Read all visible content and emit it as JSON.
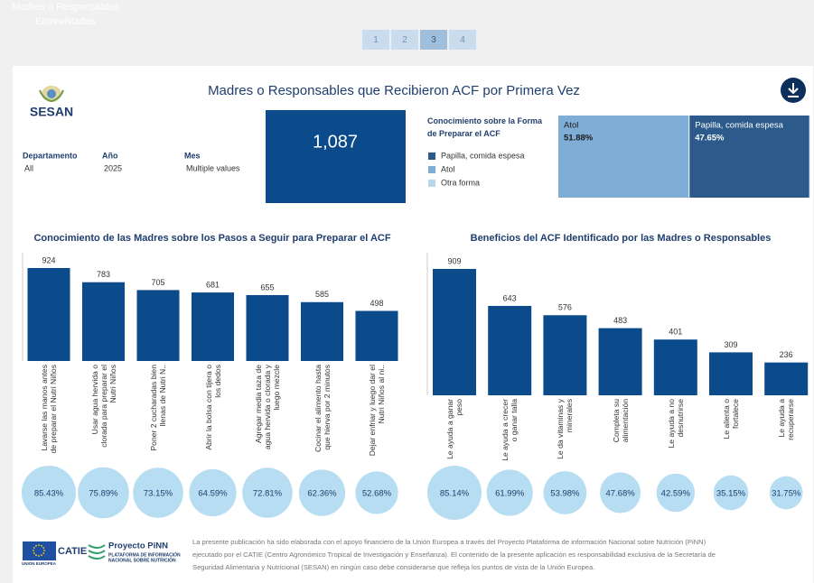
{
  "pages": [
    "1",
    "2",
    "3",
    "4"
  ],
  "current_page": "3",
  "title": "Madres o Responsables que Recibieron ACF por Primera Vez",
  "logo": "SESAN",
  "filters": [
    {
      "label": "Departamento",
      "value": "All"
    },
    {
      "label": "Año",
      "value": "2025"
    },
    {
      "label": "Mes",
      "value": "Multiple values"
    }
  ],
  "kpi": {
    "value": "1,087",
    "label": "Madres o Responsables Entrevistadas"
  },
  "chart_data": [
    {
      "type": "treemap",
      "title": "Conocimiento sobre la Forma de Preparar el ACF",
      "series": [
        {
          "name": "Papilla, comida espesa",
          "color": "#2c5a8a",
          "value": 47.65,
          "value_label": "47.65%"
        },
        {
          "name": "Atol",
          "color": "#7fadd6",
          "value": 51.88,
          "value_label": "51.88%"
        },
        {
          "name": "Otra forma",
          "color": "#b5d6ec",
          "value": 0.47
        }
      ]
    },
    {
      "type": "bar",
      "title": "Conocimiento de las Madres sobre los Pasos a Seguir para Preparar el ACF",
      "categories": [
        "Lavarse las manos antes de preparar el Nutri Niños",
        "Usar agua hervida o clorada para preparar el Nutri Niños",
        "Poner 2 cucharadas bien llenas de Nutri N..",
        "Abrir la bolsa con tijera o los dedos",
        "Agregar media taza de agua hervida o clorada y luego mezcle",
        "Cocinar el alimento hasta que hierva por 2 minutos",
        "Dejar enfriar y luego dar el Nutri Niños al ni.."
      ],
      "values": [
        924,
        783,
        705,
        681,
        655,
        585,
        498
      ],
      "color": "#0b4a8b",
      "shares": [
        85.43,
        75.89,
        73.15,
        64.59,
        72.81,
        62.36,
        52.68
      ],
      "share_labels": [
        "85.43%",
        "75.89%",
        "73.15%",
        "64.59%",
        "72.81%",
        "62.36%",
        "52.68%"
      ],
      "share_color": "#b7ddf3"
    },
    {
      "type": "bar",
      "title": "Beneficios del ACF Identificado por las Madres o Responsables",
      "categories": [
        "Le ayuda a ganar peso",
        "Le ayuda a crecer o ganar talla",
        "Le da vitaminas y minerales",
        "Completa su alimentación",
        "Le ayuda a no desnutrirse",
        "Le alienta o fortalece",
        "Le ayuda a recuperarse"
      ],
      "values": [
        909,
        643,
        576,
        483,
        401,
        309,
        236
      ],
      "color": "#0b4a8b",
      "shares": [
        85.14,
        61.99,
        53.98,
        47.68,
        42.59,
        35.15,
        31.75
      ],
      "share_labels": [
        "85.14%",
        "61.99%",
        "53.98%",
        "47.68%",
        "42.59%",
        "35.15%",
        "31.75%"
      ],
      "share_color": "#b7ddf3"
    }
  ],
  "footer": {
    "eu": "UNIÓN EUROPEA",
    "catie": "CATIE",
    "project": "Proyecto PiNN",
    "project_lines": [
      "PLATAFORMA DE INFORMACIÓN",
      "NACIONAL SOBRE NUTRICIÓN"
    ],
    "text_lines": [
      "La presente publicación ha sido elaborada con el apoyo financiero de la Unión Europea a través del Proyecto Plataforma de información Nacional sobre Nutrición (PiNN)",
      "ejecutado por el CATIE (Centro Agronómico Tropical de Investigación y Enseñanza). El contenido de la presente aplicación es responsabilidad exclusiva de la Secretaría de",
      "Seguridad Alimentaria y Nutricional (SESAN) en ningún caso debe considerarse que refleja los puntos de vista de la Unión Europea."
    ]
  }
}
